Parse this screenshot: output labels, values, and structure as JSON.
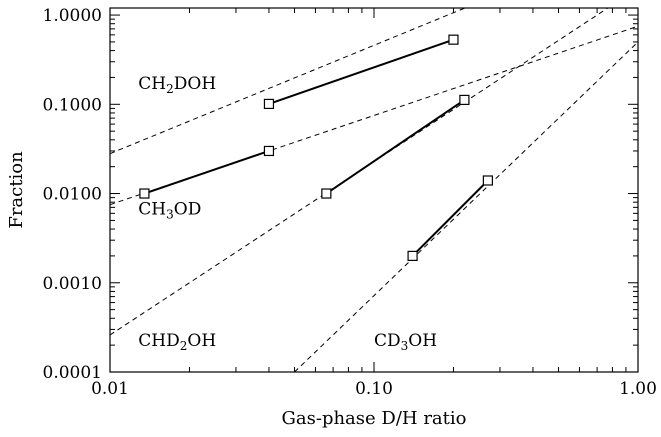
{
  "chart_data": {
    "type": "line",
    "title": "",
    "xlabel": "Gas-phase D/H ratio",
    "ylabel": "Fraction",
    "x_scale": "log",
    "y_scale": "log",
    "xlim": [
      0.01,
      1.0
    ],
    "ylim": [
      0.0001,
      1.2
    ],
    "grid": false,
    "x_ticks": [
      {
        "value": 0.01,
        "label": "0.01"
      },
      {
        "value": 0.1,
        "label": "0.10"
      },
      {
        "value": 1.0,
        "label": "1.00"
      }
    ],
    "y_ticks": [
      {
        "value": 0.0001,
        "label": "0.0001"
      },
      {
        "value": 0.001,
        "label": "0.0010"
      },
      {
        "value": 0.01,
        "label": "0.0100"
      },
      {
        "value": 0.1,
        "label": "0.1000"
      },
      {
        "value": 1.0,
        "label": "1.0000"
      }
    ],
    "series": [
      {
        "name": "CH2DOH",
        "label_main": "CH",
        "label_sub": "2",
        "label_rest": "DOH",
        "label_x": 0.0128,
        "label_y": 0.148,
        "model_line": [
          [
            0.01,
            0.028
          ],
          [
            1.0,
            7.5
          ]
        ],
        "observed": [
          [
            0.04,
            0.101
          ],
          [
            0.2,
            0.53
          ]
        ]
      },
      {
        "name": "CH3OD",
        "label_main": "CH",
        "label_sub": "3",
        "label_rest": "OD",
        "label_x": 0.0128,
        "label_y": 0.0058,
        "model_line": [
          [
            0.01,
            0.0075
          ],
          [
            1.0,
            0.75
          ]
        ],
        "observed": [
          [
            0.0135,
            0.01
          ],
          [
            0.04,
            0.03
          ]
        ]
      },
      {
        "name": "CHD2OH",
        "label_main": "CHD",
        "label_sub": "2",
        "label_rest": "OH",
        "label_x": 0.0128,
        "label_y": 0.000195,
        "model_line": [
          [
            0.01,
            0.00026
          ],
          [
            1.0,
            2.0
          ]
        ],
        "observed": [
          [
            0.066,
            0.01
          ],
          [
            0.22,
            0.112
          ]
        ]
      },
      {
        "name": "CD3OH",
        "label_main": "CD",
        "label_sub": "3",
        "label_rest": "OH",
        "label_x": 0.1,
        "label_y": 0.000195,
        "model_line": [
          [
            0.05,
            0.0001
          ],
          [
            1.0,
            0.5
          ]
        ],
        "observed": [
          [
            0.14,
            0.002
          ],
          [
            0.27,
            0.014
          ]
        ]
      }
    ]
  }
}
